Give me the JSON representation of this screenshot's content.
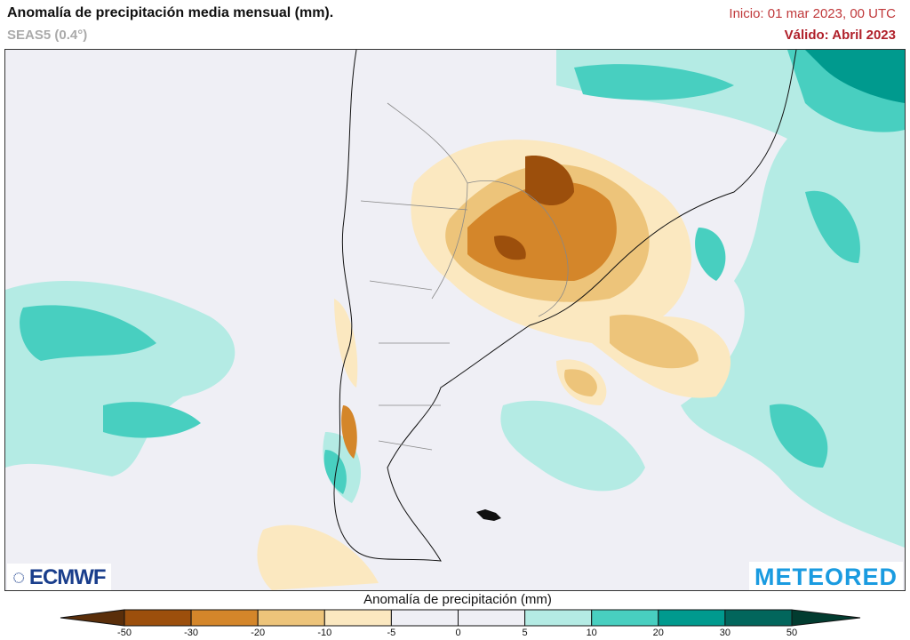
{
  "header": {
    "title": "Anomalía de precipitación media mensual (mm).",
    "subtitle": "SEAS5 (0.4°)",
    "init": "Inicio: 01 mar 2023, 00 UTC",
    "valid": "Válido: Abril 2023"
  },
  "logos": {
    "left": "ECMWF",
    "right": "METEORED"
  },
  "colorbar": {
    "title": "Anomalía de precipitación (mm)",
    "ticks": [
      "-50",
      "-30",
      "-20",
      "-10",
      "-5",
      "0",
      "5",
      "10",
      "20",
      "30",
      "50"
    ],
    "under_color": "#5a2e0a",
    "over_color": "#023c30",
    "colors": [
      "#9c4f0c",
      "#d4862a",
      "#edc47a",
      "#fbe8c0",
      "#efeff5",
      "#efeff5",
      "#b4ebe4",
      "#48cfc0",
      "#009a8e",
      "#02665c"
    ]
  },
  "map": {
    "region": "South America (southern cone) and adjacent oceans",
    "background_color": "#efeff5"
  }
}
